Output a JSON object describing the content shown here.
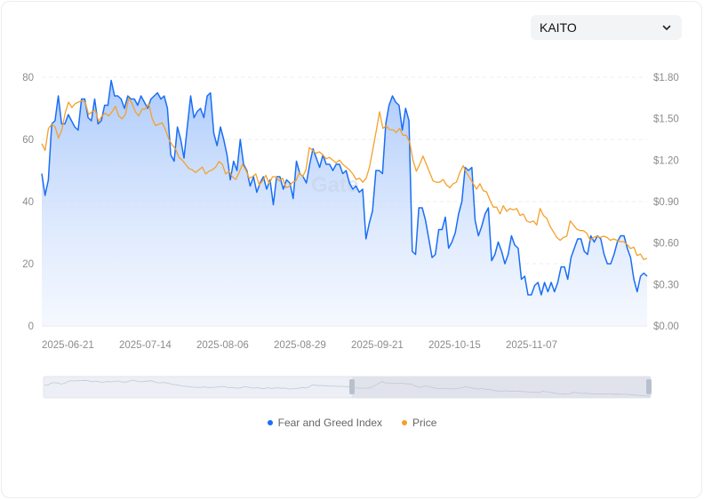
{
  "selector": {
    "value": "KAITO",
    "icon": "chevron-down-icon"
  },
  "legend": [
    {
      "label": "Fear and Greed Index",
      "color": "#1a6ef5"
    },
    {
      "label": "Price",
      "color": "#f5a02a"
    }
  ],
  "watermark": "Gate",
  "chart_data": {
    "type": "line",
    "title": "",
    "xlabel": "",
    "ylabel_left": "Fear and Greed Index",
    "ylabel_right": "Price",
    "x_ticks": [
      "2025-06-21",
      "2025-07-14",
      "2025-08-06",
      "2025-08-29",
      "2025-09-21",
      "2025-10-15",
      "2025-11-07"
    ],
    "y_left_ticks": [
      "0",
      "20",
      "40",
      "60",
      "80"
    ],
    "y_left_range": [
      0,
      80
    ],
    "y_right_ticks": [
      "$0.00",
      "$0.30",
      "$0.60",
      "$0.90",
      "$1.20",
      "$1.50",
      "$1.80"
    ],
    "y_right_range": [
      0,
      1.8
    ],
    "grid": "horizontal dashed",
    "legend_position": "bottom",
    "x_start": "2025-06-21",
    "x_end": "2025-12-18",
    "series": [
      {
        "name": "Fear and Greed Index",
        "color": "#1a6ef5",
        "area": true,
        "values": [
          49,
          42,
          47,
          65,
          66,
          74,
          65,
          65,
          68,
          66,
          64,
          63,
          73,
          73,
          67,
          66,
          73,
          65,
          66,
          71,
          71,
          79,
          74,
          74,
          73,
          70,
          74,
          73,
          73,
          71,
          74,
          72,
          70,
          73,
          74,
          75,
          73,
          74,
          70,
          55,
          53,
          64,
          60,
          54,
          64,
          74,
          67,
          69,
          70,
          67,
          74,
          75,
          62,
          58,
          64,
          60,
          55,
          47,
          53,
          50,
          60,
          52,
          50,
          45,
          48,
          43,
          46,
          48,
          44,
          47,
          39,
          48,
          48,
          44,
          47,
          46,
          41,
          53,
          49,
          48,
          46,
          52,
          57,
          54,
          51,
          55,
          52,
          52,
          50,
          52,
          52,
          49,
          50,
          46,
          44,
          45,
          43,
          44,
          28,
          33,
          37,
          50,
          50,
          49,
          65,
          71,
          74,
          72,
          71,
          63,
          70,
          66,
          24,
          23,
          38,
          38,
          34,
          28,
          22,
          23,
          31,
          31,
          35,
          25,
          27,
          30,
          36,
          40,
          51,
          50,
          51,
          34,
          29,
          32,
          36,
          38,
          21,
          23,
          27,
          24,
          20,
          23,
          29,
          26,
          25,
          15,
          16,
          10,
          10,
          13,
          14,
          10,
          14,
          11,
          14,
          11,
          14,
          19,
          19,
          15,
          22,
          25,
          28,
          28,
          24,
          23,
          29,
          27,
          29,
          28,
          23,
          20,
          20,
          23,
          27,
          29,
          29,
          25,
          22,
          15,
          11,
          16,
          17,
          16
        ]
      },
      {
        "name": "Price",
        "color": "#f5a02a",
        "area": false,
        "values": [
          1.32,
          1.27,
          1.43,
          1.46,
          1.44,
          1.36,
          1.42,
          1.54,
          1.62,
          1.58,
          1.61,
          1.62,
          1.63,
          1.62,
          1.53,
          1.55,
          1.56,
          1.48,
          1.52,
          1.54,
          1.52,
          1.55,
          1.59,
          1.52,
          1.5,
          1.53,
          1.65,
          1.61,
          1.55,
          1.52,
          1.57,
          1.57,
          1.61,
          1.5,
          1.45,
          1.46,
          1.47,
          1.42,
          1.35,
          1.31,
          1.28,
          1.22,
          1.2,
          1.17,
          1.14,
          1.13,
          1.11,
          1.13,
          1.15,
          1.1,
          1.12,
          1.13,
          1.15,
          1.19,
          1.17,
          1.1,
          1.12,
          1.08,
          1.06,
          1.11,
          1.17,
          1.13,
          1.07,
          1.08,
          1.1,
          1.02,
          1.05,
          1.09,
          1.03,
          1.08,
          1.08,
          1.05,
          1.07,
          1.0,
          1.01,
          1.04,
          1.05,
          1.11,
          1.08,
          1.13,
          1.29,
          1.27,
          1.25,
          1.26,
          1.24,
          1.21,
          1.22,
          1.2,
          1.18,
          1.2,
          1.17,
          1.15,
          1.13,
          1.1,
          1.06,
          1.07,
          1.04,
          1.07,
          1.15,
          1.28,
          1.41,
          1.55,
          1.43,
          1.45,
          1.42,
          1.42,
          1.4,
          1.43,
          1.38,
          1.38,
          1.33,
          1.2,
          1.12,
          1.17,
          1.23,
          1.17,
          1.11,
          1.05,
          1.04,
          1.04,
          1.06,
          1.02,
          1.0,
          1.03,
          1.04,
          1.11,
          1.16,
          1.11,
          1.07,
          1.03,
          0.99,
          1.03,
          0.98,
          0.97,
          0.91,
          0.86,
          0.86,
          0.81,
          0.87,
          0.83,
          0.85,
          0.84,
          0.85,
          0.8,
          0.81,
          0.76,
          0.75,
          0.76,
          0.73,
          0.85,
          0.8,
          0.78,
          0.72,
          0.68,
          0.64,
          0.62,
          0.64,
          0.65,
          0.76,
          0.73,
          0.7,
          0.69,
          0.69,
          0.67,
          0.62,
          0.64,
          0.65,
          0.64,
          0.65,
          0.64,
          0.62,
          0.63,
          0.62,
          0.61,
          0.61,
          0.59,
          0.56,
          0.57,
          0.51,
          0.52,
          0.48,
          0.49
        ]
      }
    ]
  },
  "navigator": {
    "selected_range_start_pct": 51.2,
    "selected_range_end_pct": 100
  }
}
